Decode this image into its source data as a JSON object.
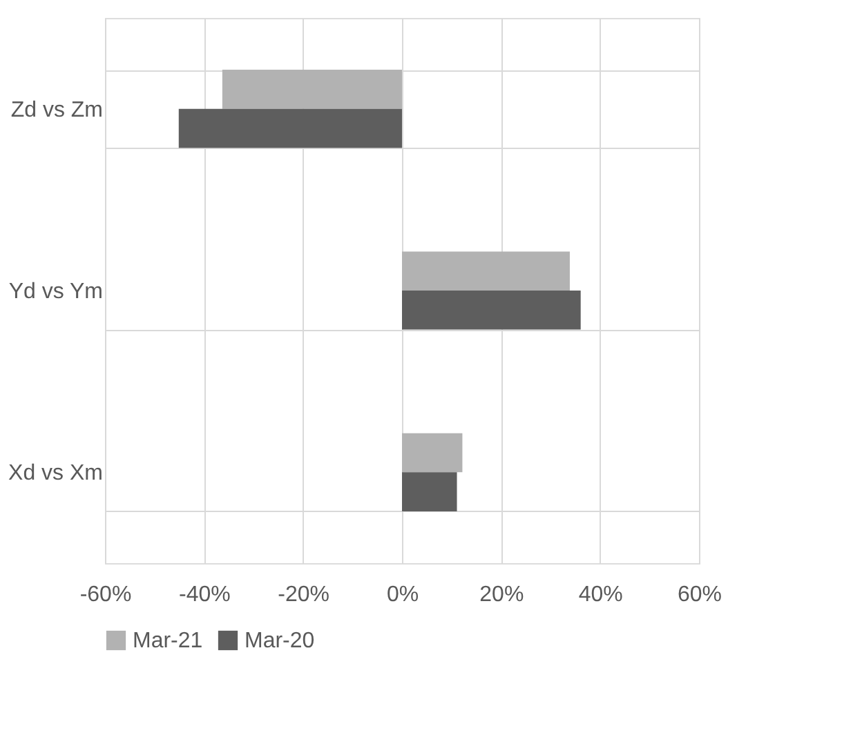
{
  "chart_data": {
    "type": "bar",
    "orientation": "horizontal",
    "categories": [
      "Zd vs Zm",
      "Yd vs Ym",
      "Xd vs Xm"
    ],
    "series": [
      {
        "name": "Mar-21",
        "color": "#b2b2b2",
        "values": [
          -36.3,
          33.9,
          12.2
        ]
      },
      {
        "name": "Mar-20",
        "color": "#5e5e5e",
        "values": [
          -45.1,
          36.1,
          11.1
        ]
      }
    ],
    "xlim": [
      -60,
      60
    ],
    "xticks": [
      {
        "value": -60,
        "label": "-60%"
      },
      {
        "value": -40,
        "label": "-40%"
      },
      {
        "value": -20,
        "label": "-20%"
      },
      {
        "value": 0,
        "label": "0%"
      },
      {
        "value": 20,
        "label": "20%"
      },
      {
        "value": 40,
        "label": "40%"
      },
      {
        "value": 60,
        "label": "60%"
      }
    ],
    "grid": true,
    "legend": "bottom"
  }
}
